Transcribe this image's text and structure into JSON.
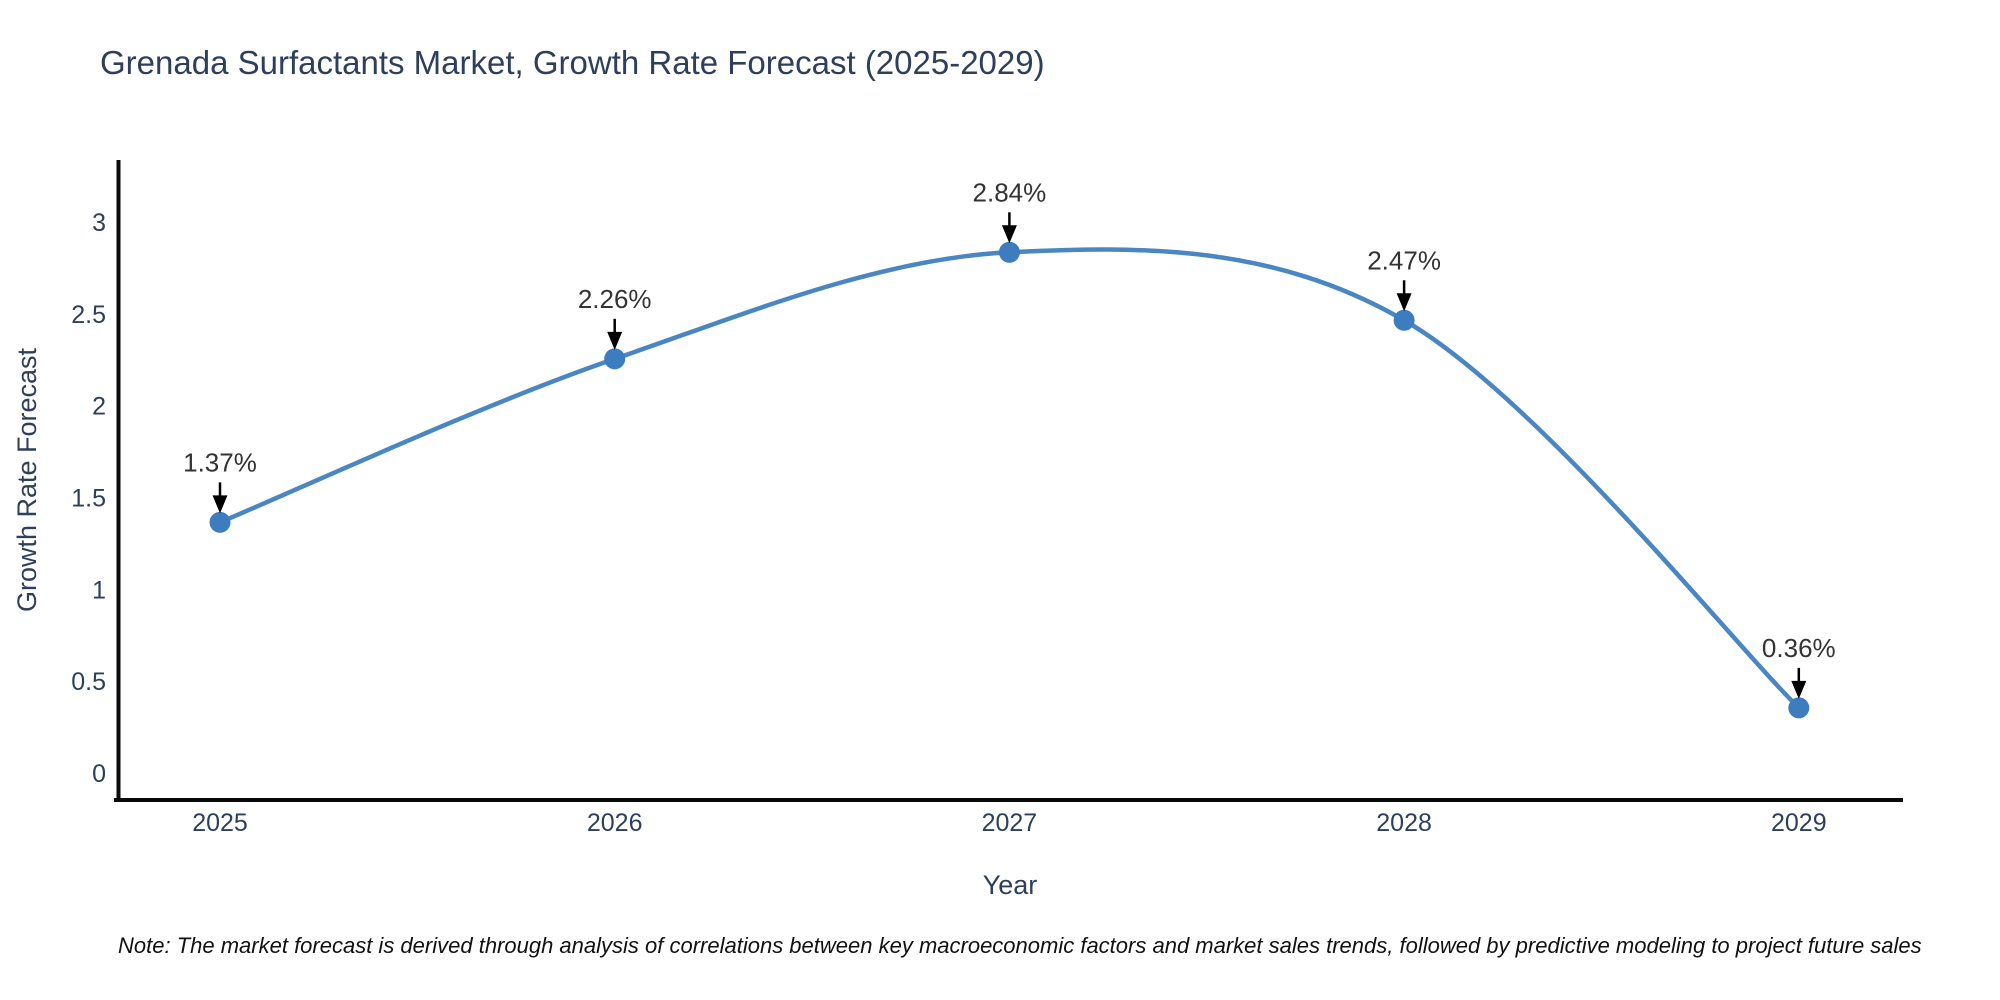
{
  "chart_data": {
    "type": "line",
    "title": "Grenada Surfactants Market, Growth Rate Forecast (2025-2029)",
    "xlabel": "Year",
    "ylabel": "Growth Rate Forecast",
    "x": [
      2025,
      2026,
      2027,
      2028,
      2029
    ],
    "values": [
      1.37,
      2.26,
      2.84,
      2.47,
      0.36
    ],
    "point_labels": [
      "1.37%",
      "2.26%",
      "2.84%",
      "2.47%",
      "0.36%"
    ],
    "x_tick_labels": [
      "2025",
      "2026",
      "2027",
      "2028",
      "2029"
    ],
    "yticks": [
      0,
      0.5,
      1,
      1.5,
      2,
      2.5,
      3
    ],
    "ytick_labels": [
      "0",
      "0.5",
      "1",
      "1.5",
      "2",
      "2.5",
      "3"
    ],
    "ylim": [
      -0.14,
      3.34
    ],
    "xlim": [
      2024.73,
      2029.27
    ],
    "grid": false,
    "legend": "none",
    "colors": {
      "line": "#4a86c1",
      "marker": "#3c7cbf",
      "axis": "#0a0a0a",
      "tick_text": "#2e3f5c",
      "annotation_text": "#333333",
      "arrow": "#000000"
    },
    "note": "Note: The market forecast is derived through analysis of correlations between key macroeconomic factors and market sales trends, followed by predictive modeling to project future sales"
  }
}
